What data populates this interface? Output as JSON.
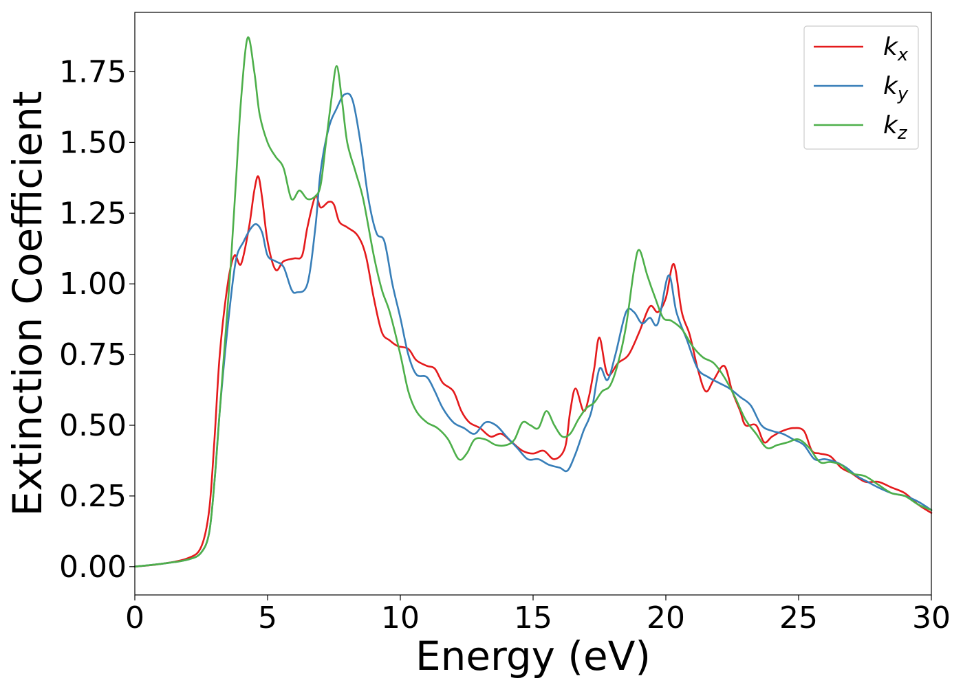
{
  "chart_data": {
    "type": "line",
    "title": "",
    "xlabel": "Energy (eV)",
    "ylabel": "Extinction Coefficient",
    "xlim": [
      0,
      30
    ],
    "ylim": [
      -0.1,
      1.96
    ],
    "xticks": [
      0,
      5,
      10,
      15,
      20,
      25,
      30
    ],
    "xtick_labels": [
      "0",
      "5",
      "10",
      "15",
      "20",
      "25",
      "30"
    ],
    "yticks": [
      0.0,
      0.25,
      0.5,
      0.75,
      1.0,
      1.25,
      1.5,
      1.75
    ],
    "ytick_labels": [
      "0.00",
      "0.25",
      "0.50",
      "0.75",
      "1.00",
      "1.25",
      "1.50",
      "1.75"
    ],
    "grid": false,
    "legend_position": "top-right",
    "series": [
      {
        "name": "k_x",
        "label_main": "k",
        "label_sub": "x",
        "color": "#e41a1c",
        "points": [
          [
            0,
            0
          ],
          [
            1,
            0.01
          ],
          [
            2,
            0.03
          ],
          [
            2.5,
            0.07
          ],
          [
            2.8,
            0.2
          ],
          [
            3.0,
            0.45
          ],
          [
            3.2,
            0.75
          ],
          [
            3.5,
            1.0
          ],
          [
            3.75,
            1.1
          ],
          [
            4.0,
            1.07
          ],
          [
            4.3,
            1.2
          ],
          [
            4.5,
            1.33
          ],
          [
            4.65,
            1.38
          ],
          [
            4.8,
            1.3
          ],
          [
            5.0,
            1.15
          ],
          [
            5.3,
            1.05
          ],
          [
            5.6,
            1.08
          ],
          [
            6.0,
            1.09
          ],
          [
            6.3,
            1.1
          ],
          [
            6.5,
            1.2
          ],
          [
            6.8,
            1.31
          ],
          [
            7.0,
            1.27
          ],
          [
            7.3,
            1.29
          ],
          [
            7.5,
            1.28
          ],
          [
            7.7,
            1.22
          ],
          [
            8.0,
            1.2
          ],
          [
            8.4,
            1.17
          ],
          [
            8.7,
            1.1
          ],
          [
            9.0,
            0.95
          ],
          [
            9.3,
            0.83
          ],
          [
            9.6,
            0.8
          ],
          [
            9.9,
            0.78
          ],
          [
            10.3,
            0.77
          ],
          [
            10.6,
            0.73
          ],
          [
            11.0,
            0.71
          ],
          [
            11.3,
            0.7
          ],
          [
            11.6,
            0.65
          ],
          [
            12.0,
            0.62
          ],
          [
            12.3,
            0.55
          ],
          [
            12.6,
            0.51
          ],
          [
            13.0,
            0.49
          ],
          [
            13.4,
            0.46
          ],
          [
            13.8,
            0.47
          ],
          [
            14.2,
            0.44
          ],
          [
            14.6,
            0.41
          ],
          [
            15.0,
            0.4
          ],
          [
            15.4,
            0.41
          ],
          [
            15.8,
            0.38
          ],
          [
            16.2,
            0.42
          ],
          [
            16.4,
            0.55
          ],
          [
            16.6,
            0.63
          ],
          [
            16.9,
            0.55
          ],
          [
            17.1,
            0.6
          ],
          [
            17.3,
            0.7
          ],
          [
            17.5,
            0.81
          ],
          [
            17.8,
            0.68
          ],
          [
            18.2,
            0.72
          ],
          [
            18.6,
            0.75
          ],
          [
            19.0,
            0.83
          ],
          [
            19.4,
            0.92
          ],
          [
            19.7,
            0.9
          ],
          [
            20.0,
            0.95
          ],
          [
            20.3,
            1.07
          ],
          [
            20.6,
            0.9
          ],
          [
            20.9,
            0.82
          ],
          [
            21.2,
            0.7
          ],
          [
            21.5,
            0.62
          ],
          [
            21.8,
            0.66
          ],
          [
            22.2,
            0.71
          ],
          [
            22.5,
            0.62
          ],
          [
            22.8,
            0.55
          ],
          [
            23.0,
            0.5
          ],
          [
            23.4,
            0.5
          ],
          [
            23.7,
            0.44
          ],
          [
            24.0,
            0.46
          ],
          [
            24.4,
            0.48
          ],
          [
            24.8,
            0.49
          ],
          [
            25.2,
            0.48
          ],
          [
            25.5,
            0.41
          ],
          [
            25.8,
            0.4
          ],
          [
            26.2,
            0.39
          ],
          [
            26.6,
            0.35
          ],
          [
            27.0,
            0.33
          ],
          [
            27.5,
            0.3
          ],
          [
            28.0,
            0.3
          ],
          [
            28.5,
            0.28
          ],
          [
            29.0,
            0.26
          ],
          [
            29.5,
            0.22
          ],
          [
            30,
            0.19
          ]
        ]
      },
      {
        "name": "k_y",
        "label_main": "k",
        "label_sub": "y",
        "color": "#377eb8",
        "points": [
          [
            0,
            0
          ],
          [
            1,
            0.01
          ],
          [
            2,
            0.025
          ],
          [
            2.5,
            0.05
          ],
          [
            2.8,
            0.12
          ],
          [
            3.0,
            0.3
          ],
          [
            3.2,
            0.55
          ],
          [
            3.5,
            0.85
          ],
          [
            3.8,
            1.08
          ],
          [
            4.1,
            1.15
          ],
          [
            4.4,
            1.2
          ],
          [
            4.6,
            1.21
          ],
          [
            4.8,
            1.18
          ],
          [
            5.0,
            1.1
          ],
          [
            5.3,
            1.08
          ],
          [
            5.6,
            1.06
          ],
          [
            5.9,
            0.98
          ],
          [
            6.1,
            0.97
          ],
          [
            6.5,
            1.0
          ],
          [
            6.8,
            1.2
          ],
          [
            7.0,
            1.4
          ],
          [
            7.3,
            1.55
          ],
          [
            7.6,
            1.62
          ],
          [
            7.9,
            1.67
          ],
          [
            8.2,
            1.65
          ],
          [
            8.5,
            1.5
          ],
          [
            8.8,
            1.3
          ],
          [
            9.1,
            1.18
          ],
          [
            9.4,
            1.15
          ],
          [
            9.7,
            1.0
          ],
          [
            10.0,
            0.88
          ],
          [
            10.3,
            0.75
          ],
          [
            10.6,
            0.68
          ],
          [
            11.0,
            0.67
          ],
          [
            11.3,
            0.62
          ],
          [
            11.6,
            0.56
          ],
          [
            12.0,
            0.51
          ],
          [
            12.4,
            0.49
          ],
          [
            12.8,
            0.47
          ],
          [
            13.2,
            0.51
          ],
          [
            13.6,
            0.5
          ],
          [
            14.0,
            0.46
          ],
          [
            14.4,
            0.42
          ],
          [
            14.8,
            0.38
          ],
          [
            15.2,
            0.38
          ],
          [
            15.6,
            0.36
          ],
          [
            16.0,
            0.35
          ],
          [
            16.3,
            0.34
          ],
          [
            16.6,
            0.4
          ],
          [
            16.9,
            0.48
          ],
          [
            17.2,
            0.55
          ],
          [
            17.5,
            0.7
          ],
          [
            17.8,
            0.66
          ],
          [
            18.1,
            0.75
          ],
          [
            18.5,
            0.9
          ],
          [
            18.8,
            0.9
          ],
          [
            19.1,
            0.86
          ],
          [
            19.4,
            0.88
          ],
          [
            19.7,
            0.86
          ],
          [
            20.1,
            1.03
          ],
          [
            20.4,
            0.9
          ],
          [
            20.8,
            0.8
          ],
          [
            21.2,
            0.7
          ],
          [
            21.6,
            0.67
          ],
          [
            22.0,
            0.65
          ],
          [
            22.4,
            0.63
          ],
          [
            22.8,
            0.6
          ],
          [
            23.2,
            0.57
          ],
          [
            23.6,
            0.5
          ],
          [
            24.0,
            0.48
          ],
          [
            24.4,
            0.47
          ],
          [
            24.8,
            0.45
          ],
          [
            25.2,
            0.43
          ],
          [
            25.6,
            0.38
          ],
          [
            26.0,
            0.38
          ],
          [
            26.4,
            0.37
          ],
          [
            26.8,
            0.35
          ],
          [
            27.2,
            0.32
          ],
          [
            27.6,
            0.3
          ],
          [
            28.0,
            0.28
          ],
          [
            28.5,
            0.26
          ],
          [
            29.0,
            0.25
          ],
          [
            29.5,
            0.23
          ],
          [
            30,
            0.2
          ]
        ]
      },
      {
        "name": "k_z",
        "label_main": "k",
        "label_sub": "z",
        "color": "#4daf4a",
        "points": [
          [
            0,
            0
          ],
          [
            1,
            0.01
          ],
          [
            2,
            0.025
          ],
          [
            2.5,
            0.05
          ],
          [
            2.8,
            0.12
          ],
          [
            3.0,
            0.3
          ],
          [
            3.2,
            0.55
          ],
          [
            3.4,
            0.8
          ],
          [
            3.6,
            1.05
          ],
          [
            3.8,
            1.35
          ],
          [
            4.0,
            1.65
          ],
          [
            4.25,
            1.87
          ],
          [
            4.5,
            1.75
          ],
          [
            4.7,
            1.6
          ],
          [
            5.0,
            1.5
          ],
          [
            5.3,
            1.45
          ],
          [
            5.6,
            1.41
          ],
          [
            5.9,
            1.3
          ],
          [
            6.2,
            1.33
          ],
          [
            6.5,
            1.3
          ],
          [
            6.8,
            1.31
          ],
          [
            7.0,
            1.35
          ],
          [
            7.2,
            1.5
          ],
          [
            7.4,
            1.65
          ],
          [
            7.6,
            1.77
          ],
          [
            7.8,
            1.65
          ],
          [
            8.0,
            1.5
          ],
          [
            8.3,
            1.4
          ],
          [
            8.6,
            1.3
          ],
          [
            9.0,
            1.1
          ],
          [
            9.3,
            0.98
          ],
          [
            9.6,
            0.9
          ],
          [
            10.0,
            0.75
          ],
          [
            10.3,
            0.62
          ],
          [
            10.6,
            0.55
          ],
          [
            11.0,
            0.51
          ],
          [
            11.4,
            0.49
          ],
          [
            11.8,
            0.45
          ],
          [
            12.2,
            0.38
          ],
          [
            12.5,
            0.4
          ],
          [
            12.8,
            0.45
          ],
          [
            13.2,
            0.45
          ],
          [
            13.6,
            0.43
          ],
          [
            14.0,
            0.43
          ],
          [
            14.3,
            0.45
          ],
          [
            14.6,
            0.51
          ],
          [
            14.9,
            0.5
          ],
          [
            15.2,
            0.49
          ],
          [
            15.5,
            0.55
          ],
          [
            15.8,
            0.5
          ],
          [
            16.1,
            0.46
          ],
          [
            16.4,
            0.47
          ],
          [
            16.7,
            0.52
          ],
          [
            17.0,
            0.56
          ],
          [
            17.3,
            0.58
          ],
          [
            17.6,
            0.62
          ],
          [
            17.9,
            0.64
          ],
          [
            18.2,
            0.72
          ],
          [
            18.5,
            0.85
          ],
          [
            18.8,
            1.05
          ],
          [
            19.0,
            1.12
          ],
          [
            19.3,
            1.03
          ],
          [
            19.6,
            0.95
          ],
          [
            19.9,
            0.88
          ],
          [
            20.2,
            0.87
          ],
          [
            20.6,
            0.84
          ],
          [
            21.0,
            0.78
          ],
          [
            21.4,
            0.74
          ],
          [
            21.8,
            0.72
          ],
          [
            22.2,
            0.67
          ],
          [
            22.6,
            0.6
          ],
          [
            23.0,
            0.52
          ],
          [
            23.4,
            0.47
          ],
          [
            23.8,
            0.42
          ],
          [
            24.2,
            0.43
          ],
          [
            24.6,
            0.44
          ],
          [
            25.0,
            0.45
          ],
          [
            25.4,
            0.42
          ],
          [
            25.8,
            0.37
          ],
          [
            26.2,
            0.37
          ],
          [
            26.6,
            0.36
          ],
          [
            27.0,
            0.33
          ],
          [
            27.5,
            0.32
          ],
          [
            28.0,
            0.29
          ],
          [
            28.5,
            0.26
          ],
          [
            29.0,
            0.25
          ],
          [
            29.5,
            0.22
          ],
          [
            30,
            0.2
          ]
        ]
      }
    ]
  }
}
